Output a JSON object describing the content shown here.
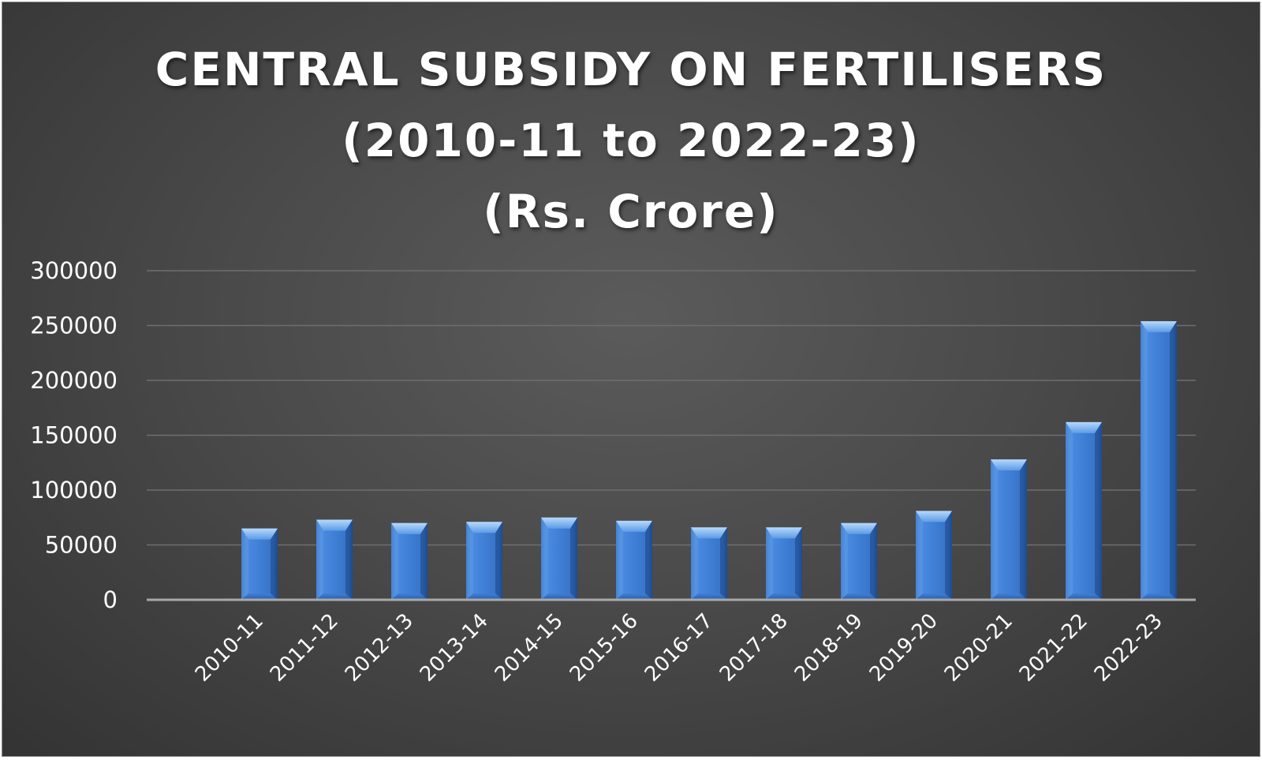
{
  "chart_data": {
    "type": "bar",
    "title": "CENTRAL SUBSIDY ON FERTILISERS",
    "subtitle_lines": [
      "(2010-11 to 2022-23)",
      "(Rs. Crore)"
    ],
    "categories": [
      "2010-11",
      "2011-12",
      "2012-13",
      "2013-14",
      "2014-15",
      "2015-16",
      "2016-17",
      "2017-18",
      "2018-19",
      "2019-20",
      "2020-21",
      "2021-22",
      "2022-23"
    ],
    "values": [
      65000,
      73000,
      70000,
      71000,
      75000,
      72000,
      66000,
      66000,
      70000,
      81000,
      128000,
      162000,
      254000
    ],
    "yticks": [
      0,
      50000,
      100000,
      150000,
      200000,
      250000,
      300000
    ],
    "ylim": [
      0,
      300000
    ],
    "xlabel": "",
    "ylabel": "",
    "grid": true,
    "legend": "none",
    "colors": {
      "bar": "#3f7fd6",
      "bar_top": "#8ec0f4",
      "gridline": "#6e6e6e",
      "axis": "#a9a9a9",
      "background": "#4a4a4a"
    }
  }
}
